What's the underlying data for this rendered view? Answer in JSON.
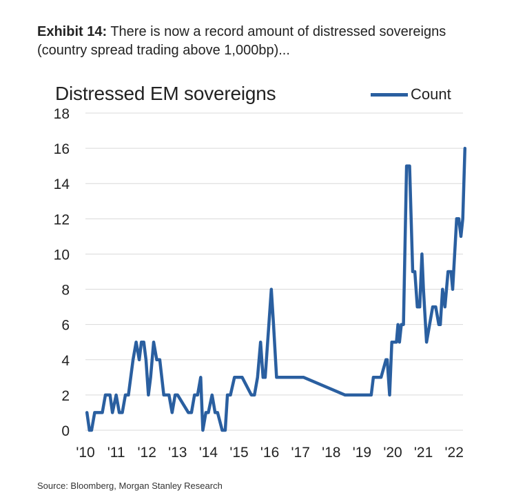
{
  "exhibit": {
    "label": "Exhibit 14:",
    "text_line1": " There is now a record amount of distressed sovereigns",
    "text_line2": "(country spread trading above 1,000bp)..."
  },
  "source": "Source: Bloomberg, Morgan Stanley Research",
  "chart_data": {
    "type": "line",
    "title": "Distressed EM sovereigns",
    "xlabel": "",
    "ylabel": "",
    "xlim": [
      2010,
      2022.5
    ],
    "ylim": [
      0,
      18
    ],
    "yticks": [
      0,
      2,
      4,
      6,
      8,
      10,
      12,
      14,
      16,
      18
    ],
    "xticks": [
      {
        "value": 2010,
        "label": "'10"
      },
      {
        "value": 2011,
        "label": "'11"
      },
      {
        "value": 2012,
        "label": "'12"
      },
      {
        "value": 2013,
        "label": "'13"
      },
      {
        "value": 2014,
        "label": "'14"
      },
      {
        "value": 2015,
        "label": "'15"
      },
      {
        "value": 2016,
        "label": "'16"
      },
      {
        "value": 2017,
        "label": "'17"
      },
      {
        "value": 2018,
        "label": "'18"
      },
      {
        "value": 2019,
        "label": "'19"
      },
      {
        "value": 2020,
        "label": "'20"
      },
      {
        "value": 2021,
        "label": "'21"
      },
      {
        "value": 2022,
        "label": "'22"
      }
    ],
    "grid": "horizontal",
    "legend_position": "top-right",
    "color": "#2a5fa0",
    "series": [
      {
        "name": "Count",
        "x": [
          2010.05,
          2010.13,
          2010.2,
          2010.3,
          2010.55,
          2010.65,
          2010.8,
          2010.88,
          2011.0,
          2011.1,
          2011.2,
          2011.3,
          2011.4,
          2011.55,
          2011.65,
          2011.75,
          2011.82,
          2011.9,
          2011.97,
          2012.05,
          2012.12,
          2012.22,
          2012.32,
          2012.42,
          2012.55,
          2012.72,
          2012.82,
          2012.92,
          2013.0,
          2013.35,
          2013.45,
          2013.55,
          2013.65,
          2013.75,
          2013.82,
          2013.92,
          2014.0,
          2014.12,
          2014.22,
          2014.3,
          2014.45,
          2014.55,
          2014.62,
          2014.72,
          2014.85,
          2015.0,
          2015.1,
          2015.4,
          2015.5,
          2015.6,
          2015.7,
          2015.78,
          2015.85,
          2016.05,
          2016.12,
          2016.22,
          2016.95,
          2017.1,
          2018.45,
          2018.65,
          2018.75,
          2019.3,
          2019.37,
          2019.52,
          2019.6,
          2019.62,
          2019.78,
          2019.82,
          2019.9,
          2019.97,
          2020.12,
          2020.17,
          2020.22,
          2020.28,
          2020.35,
          2020.45,
          2020.55,
          2020.65,
          2020.72,
          2020.8,
          2020.88,
          2020.95,
          2021.0,
          2021.1,
          2021.3,
          2021.4,
          2021.5,
          2021.55,
          2021.62,
          2021.7,
          2021.8,
          2021.9,
          2021.95,
          2022.08,
          2022.15,
          2022.22,
          2022.28,
          2022.35
        ],
        "values": [
          1,
          0,
          0,
          1,
          1,
          2,
          2,
          1,
          2,
          1,
          1,
          2,
          2,
          4,
          5,
          4,
          5,
          5,
          4,
          2,
          3,
          5,
          4,
          4,
          2,
          2,
          1,
          2,
          2,
          1,
          1,
          2,
          2,
          3,
          0,
          1,
          1,
          2,
          1,
          1,
          0,
          0,
          2,
          2,
          3,
          3,
          3,
          2,
          2,
          3,
          5,
          3,
          3,
          8,
          6,
          3,
          3,
          3,
          2,
          2,
          2,
          2,
          3,
          3,
          3,
          3,
          4,
          4,
          2,
          5,
          5,
          6,
          5,
          6,
          6,
          15,
          15,
          9,
          9,
          7,
          7,
          10,
          8,
          5,
          7,
          7,
          6,
          6,
          8,
          7,
          9,
          9,
          8,
          12,
          12,
          11,
          12,
          16
        ]
      }
    ]
  }
}
